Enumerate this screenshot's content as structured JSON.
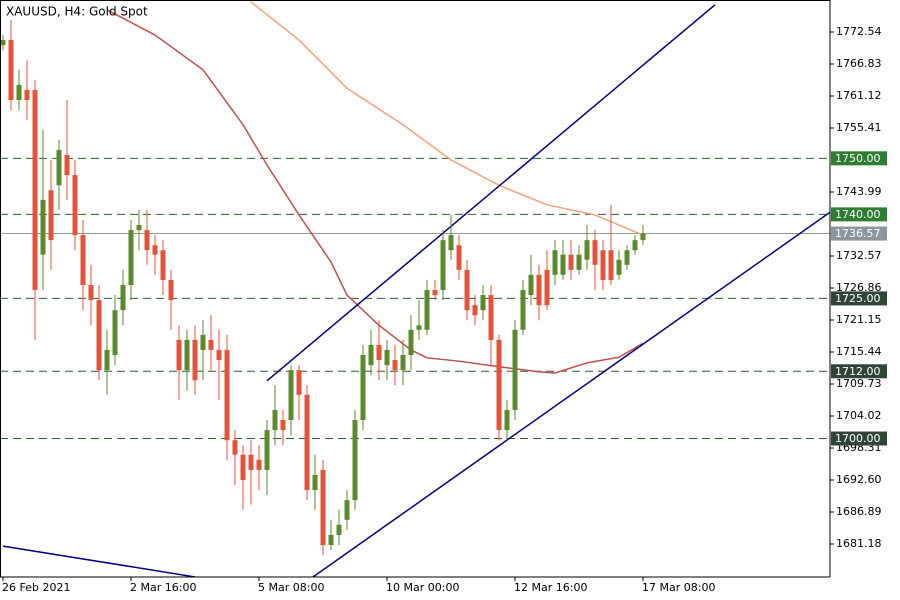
{
  "chart_data": {
    "type": "candlestick",
    "title": "XAUUSD, H4:  Gold Spot",
    "categories": [
      "26 Feb 2021",
      null,
      null,
      null,
      null,
      null,
      null,
      null,
      null,
      null,
      null,
      null,
      null,
      null,
      null,
      null,
      "2 Mar 16:00",
      null,
      null,
      null,
      null,
      null,
      null,
      null,
      null,
      null,
      null,
      null,
      null,
      null,
      null,
      null,
      "5 Mar 08:00",
      null,
      null,
      null,
      null,
      null,
      null,
      null,
      null,
      null,
      null,
      null,
      null,
      null,
      null,
      null,
      "10 Mar 00:00",
      null,
      null,
      null,
      null,
      null,
      null,
      null,
      null,
      null,
      null,
      null,
      null,
      null,
      null,
      null,
      "12 Mar 16:00",
      null,
      null,
      null,
      null,
      null,
      null,
      null,
      null,
      null,
      null,
      null,
      null,
      null,
      null,
      null,
      "17 Mar 08:00"
    ],
    "open": [
      1770.2,
      1771.1,
      1760.4,
      1762.2,
      1762.2,
      1732.8,
      1744.3,
      1745.2,
      1750.6,
      1747.0,
      1736.3,
      1727.4,
      1724.7,
      1712.2,
      1714.9,
      1722.9,
      1727.4,
      1737.2,
      1737.2,
      1734.5,
      1733.6,
      1728.3,
      1717.6,
      1712.2,
      1717.6,
      1715.8,
      1717.6,
      1715.8,
      1715.8,
      1699.7,
      1697.1,
      1697.1,
      1696.2,
      1694.4,
      1701.5,
      1703.3,
      1703.3,
      1712.2,
      1707.8,
      1690.8,
      1694.4,
      1681.0,
      1682.8,
      1685.5,
      1689.0,
      1703.3,
      1713.1,
      1716.7,
      1713.1,
      1714.0,
      1712.2,
      1714.9,
      1719.4,
      1719.4,
      1726.5,
      1726.5,
      1733.6,
      1734.5,
      1730.1,
      1723.8,
      1722.9,
      1725.6,
      1717.6,
      1701.5,
      1705.1,
      1719.4,
      1725.6,
      1729.2,
      1730.1,
      1729.2,
      1729.2,
      1732.8,
      1730.1,
      1731.9,
      1735.4,
      1733.6,
      1733.6,
      1729.2,
      1731.0,
      1733.6,
      1735.4
    ],
    "high": [
      1772.0,
      1774.7,
      1765.8,
      1767.5,
      1764.0,
      1755.1,
      1749.7,
      1753.3,
      1760.4,
      1749.7,
      1739.0,
      1731.0,
      1727.4,
      1719.4,
      1725.6,
      1730.1,
      1739.0,
      1740.8,
      1740.8,
      1736.3,
      1735.4,
      1730.1,
      1720.2,
      1719.4,
      1720.2,
      1721.1,
      1722.0,
      1719.4,
      1718.5,
      1701.5,
      1698.8,
      1699.7,
      1698.8,
      1703.3,
      1709.5,
      1705.1,
      1713.1,
      1713.1,
      1709.5,
      1697.1,
      1696.2,
      1685.5,
      1687.3,
      1690.8,
      1705.1,
      1716.7,
      1719.4,
      1721.1,
      1717.6,
      1716.7,
      1717.6,
      1722.0,
      1724.7,
      1728.3,
      1728.3,
      1737.2,
      1739.9,
      1736.3,
      1731.9,
      1725.6,
      1727.4,
      1727.4,
      1718.5,
      1706.9,
      1721.1,
      1728.3,
      1732.8,
      1731.0,
      1733.6,
      1735.4,
      1735.4,
      1735.4,
      1734.5,
      1738.1,
      1737.2,
      1735.4,
      1741.7,
      1733.6,
      1734.5,
      1736.3,
      1738.1
    ],
    "low": [
      1769.3,
      1758.6,
      1758.6,
      1756.8,
      1717.6,
      1726.5,
      1730.1,
      1740.8,
      1742.6,
      1733.6,
      1722.9,
      1720.2,
      1710.4,
      1707.8,
      1713.1,
      1720.2,
      1724.7,
      1733.6,
      1731.0,
      1729.2,
      1725.6,
      1719.4,
      1706.9,
      1708.6,
      1707.8,
      1710.4,
      1712.2,
      1706.9,
      1696.2,
      1691.7,
      1687.3,
      1688.2,
      1690.8,
      1689.9,
      1698.8,
      1698.8,
      1700.6,
      1703.3,
      1689.0,
      1687.3,
      1679.2,
      1680.1,
      1681.0,
      1683.7,
      1687.3,
      1701.5,
      1711.3,
      1710.4,
      1710.4,
      1709.5,
      1709.5,
      1712.2,
      1717.6,
      1718.5,
      1724.7,
      1724.7,
      1731.9,
      1728.3,
      1721.1,
      1720.2,
      1721.1,
      1713.1,
      1699.7,
      1699.7,
      1703.3,
      1718.5,
      1723.8,
      1721.1,
      1722.9,
      1727.4,
      1728.3,
      1728.3,
      1729.2,
      1730.1,
      1726.5,
      1726.5,
      1727.4,
      1728.3,
      1730.1,
      1732.8,
      1734.5
    ],
    "close": [
      1771.1,
      1760.4,
      1763.1,
      1760.4,
      1726.5,
      1742.6,
      1735.4,
      1751.5,
      1747.0,
      1736.3,
      1727.4,
      1724.7,
      1712.2,
      1715.8,
      1722.9,
      1727.4,
      1737.2,
      1738.1,
      1733.6,
      1732.8,
      1728.3,
      1724.7,
      1712.2,
      1717.6,
      1710.4,
      1718.5,
      1715.8,
      1714.0,
      1699.7,
      1697.1,
      1692.6,
      1694.4,
      1694.4,
      1701.5,
      1705.1,
      1701.5,
      1712.2,
      1707.8,
      1690.8,
      1693.5,
      1681.0,
      1682.8,
      1684.6,
      1689.0,
      1703.3,
      1714.9,
      1716.7,
      1714.0,
      1715.8,
      1712.2,
      1714.9,
      1719.4,
      1720.2,
      1726.5,
      1725.6,
      1735.4,
      1736.3,
      1730.1,
      1722.9,
      1722.0,
      1725.6,
      1717.6,
      1701.5,
      1705.1,
      1719.4,
      1726.5,
      1729.2,
      1723.8,
      1723.8,
      1733.6,
      1732.8,
      1730.1,
      1732.8,
      1735.4,
      1731.0,
      1728.3,
      1728.3,
      1731.9,
      1733.6,
      1735.4,
      1736.6
    ],
    "up_color": "#5b8a2c",
    "down_color": "#e5523a",
    "ylim": [
      1675.29,
      1778.25
    ],
    "yticks": [
      1772.54,
      1766.83,
      1761.12,
      1755.41,
      1743.99,
      1732.57,
      1726.86,
      1721.15,
      1715.44,
      1709.73,
      1704.02,
      1698.31,
      {
        "value": 1692.6,
        "label": "1692.60"
      },
      1686.89,
      1681.18
    ],
    "levels": [
      {
        "value": 1750,
        "label": "1750.00",
        "color": "#2e7d32"
      },
      {
        "value": 1740,
        "label": "1740.00",
        "color": "#2e7d32"
      },
      {
        "value": 1725,
        "label": "1725.00",
        "color": "#2f4538"
      },
      {
        "value": 1712,
        "label": "1712.00",
        "color": "#2f4538"
      },
      {
        "value": 1700,
        "label": "1700.00",
        "color": "#2f4538"
      }
    ],
    "current_price": 1736.57,
    "moving_averages": [
      {
        "color": "#f5a07a",
        "x": [
          31,
          37,
          43,
          50,
          56,
          62,
          68,
          74,
          80
        ],
        "values": [
          1777.9,
          1771.1,
          1762.5,
          1756.0,
          1749.7,
          1745.2,
          1741.7,
          1739.9,
          1736.3
        ]
      },
      {
        "color": "#c0504d",
        "x": [
          13,
          19,
          25,
          30,
          33,
          37,
          41,
          43,
          47,
          51,
          53,
          57,
          62,
          67,
          69,
          73,
          77,
          80
        ],
        "values": [
          1776.5,
          1772.0,
          1765.8,
          1756.0,
          1748.8,
          1739.9,
          1731.5,
          1725.6,
          1720.2,
          1715.8,
          1714.4,
          1713.8,
          1712.8,
          1711.9,
          1711.7,
          1713.5,
          1714.5,
          1717.0
        ]
      }
    ],
    "trendlines": [
      {
        "color": "#000080",
        "x": [
          33,
          89
        ],
        "values": [
          1710.3,
          1777.4
        ]
      },
      {
        "color": "#000080",
        "x": [
          38.75,
          103.4
        ],
        "values": [
          1675.3,
          1740.4
        ]
      },
      {
        "color": "#000080",
        "x": [
          0,
          24
        ],
        "values": [
          1680.8,
          1675.3
        ]
      }
    ],
    "grid": false
  }
}
